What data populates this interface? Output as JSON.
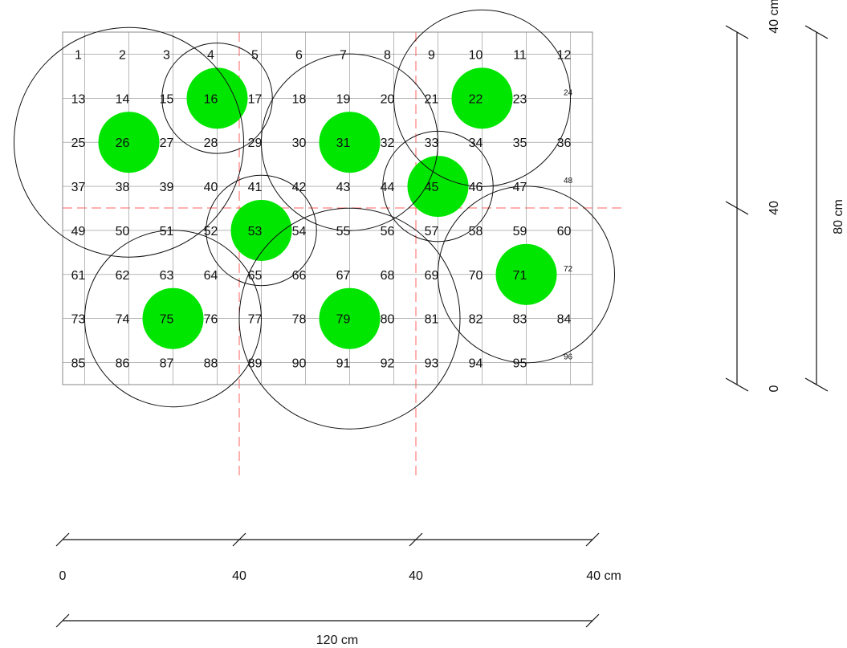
{
  "colors": {
    "plant": "#00e600",
    "grid": "#8a8a8a",
    "border": "#8a8a8a",
    "circle": "#111111",
    "guide": "#ff6060",
    "dimension": "#111111"
  },
  "grid": {
    "columns": 12,
    "rows": 8,
    "cell_numbers": [
      "1",
      "2",
      "3",
      "4",
      "5",
      "6",
      "7",
      "8",
      "9",
      "10",
      "11",
      "12",
      "13",
      "14",
      "15",
      "16",
      "17",
      "18",
      "19",
      "20",
      "21",
      "22",
      "23",
      "24",
      "25",
      "26",
      "27",
      "28",
      "29",
      "30",
      "31",
      "32",
      "33",
      "34",
      "35",
      "36",
      "37",
      "38",
      "39",
      "40",
      "41",
      "42",
      "43",
      "44",
      "45",
      "46",
      "47",
      "48",
      "49",
      "50",
      "51",
      "52",
      "53",
      "54",
      "55",
      "56",
      "57",
      "58",
      "59",
      "60",
      "61",
      "62",
      "63",
      "64",
      "65",
      "66",
      "67",
      "68",
      "69",
      "70",
      "71",
      "72",
      "73",
      "74",
      "75",
      "76",
      "77",
      "78",
      "79",
      "80",
      "81",
      "82",
      "83",
      "84",
      "85",
      "86",
      "87",
      "88",
      "89",
      "90",
      "91",
      "92",
      "93",
      "94",
      "95",
      "96"
    ],
    "small_numbers": [
      "24",
      "48",
      "72",
      "96"
    ]
  },
  "plants": [
    {
      "cell": "16",
      "spread_radius_cells": 1.25
    },
    {
      "cell": "26",
      "spread_radius_cells": 2.6
    },
    {
      "cell": "31",
      "spread_radius_cells": 2.0
    },
    {
      "cell": "22",
      "spread_radius_cells": 2.0
    },
    {
      "cell": "45",
      "spread_radius_cells": 1.25
    },
    {
      "cell": "53",
      "spread_radius_cells": 1.25
    },
    {
      "cell": "71",
      "spread_radius_cells": 2.0
    },
    {
      "cell": "75",
      "spread_radius_cells": 2.0
    },
    {
      "cell": "79",
      "spread_radius_cells": 2.5
    }
  ],
  "dimensions": {
    "bottom": {
      "tick_labels": [
        "0",
        "40",
        "40",
        "40 cm"
      ],
      "total_label": "120 cm"
    },
    "right": {
      "tick_labels": [
        "0",
        "40",
        "40 cm"
      ],
      "total_label": "80 cm"
    }
  }
}
